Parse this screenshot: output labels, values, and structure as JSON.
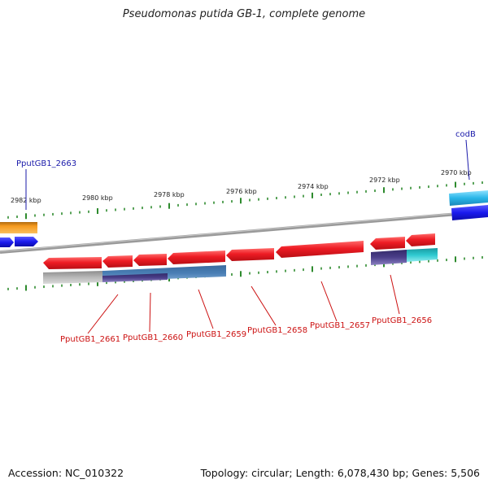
{
  "title": "Pseudomonas putida GB-1, complete genome",
  "footer": {
    "accession": "Accession: NC_010322",
    "summary": "Topology: circular; Length: 6,078,430 bp; Genes: 5,506"
  },
  "scale": {
    "major_labels": [
      "2982 kbp",
      "2980 kbp",
      "2978 kbp",
      "2976 kbp",
      "2974 kbp",
      "2972 kbp",
      "2970 kbp"
    ]
  },
  "colors": {
    "backbone": "#8a8a8a",
    "tick": "#2e8b2e",
    "forward_cds": "#1a1aee",
    "forward_cds_light": "#29b6e8",
    "forward_rna": "#f59a1e",
    "reverse_cds": "#ee1c24",
    "reverse_blast": "#4a7fb5",
    "reverse_grey": "#b8b8b8",
    "reverse_purple": "#4b3f8a",
    "reverse_cyan": "#2ec9d0",
    "label_forward": "#1a1aaa",
    "label_reverse": "#cc1111"
  },
  "labels": {
    "forward": [
      "PputGB1_2663",
      "codB"
    ],
    "reverse": [
      "PputGB1_2661",
      "PputGB1_2660",
      "PputGB1_2659",
      "PputGB1_2658",
      "PputGB1_2657",
      "PputGB1_2656"
    ]
  }
}
